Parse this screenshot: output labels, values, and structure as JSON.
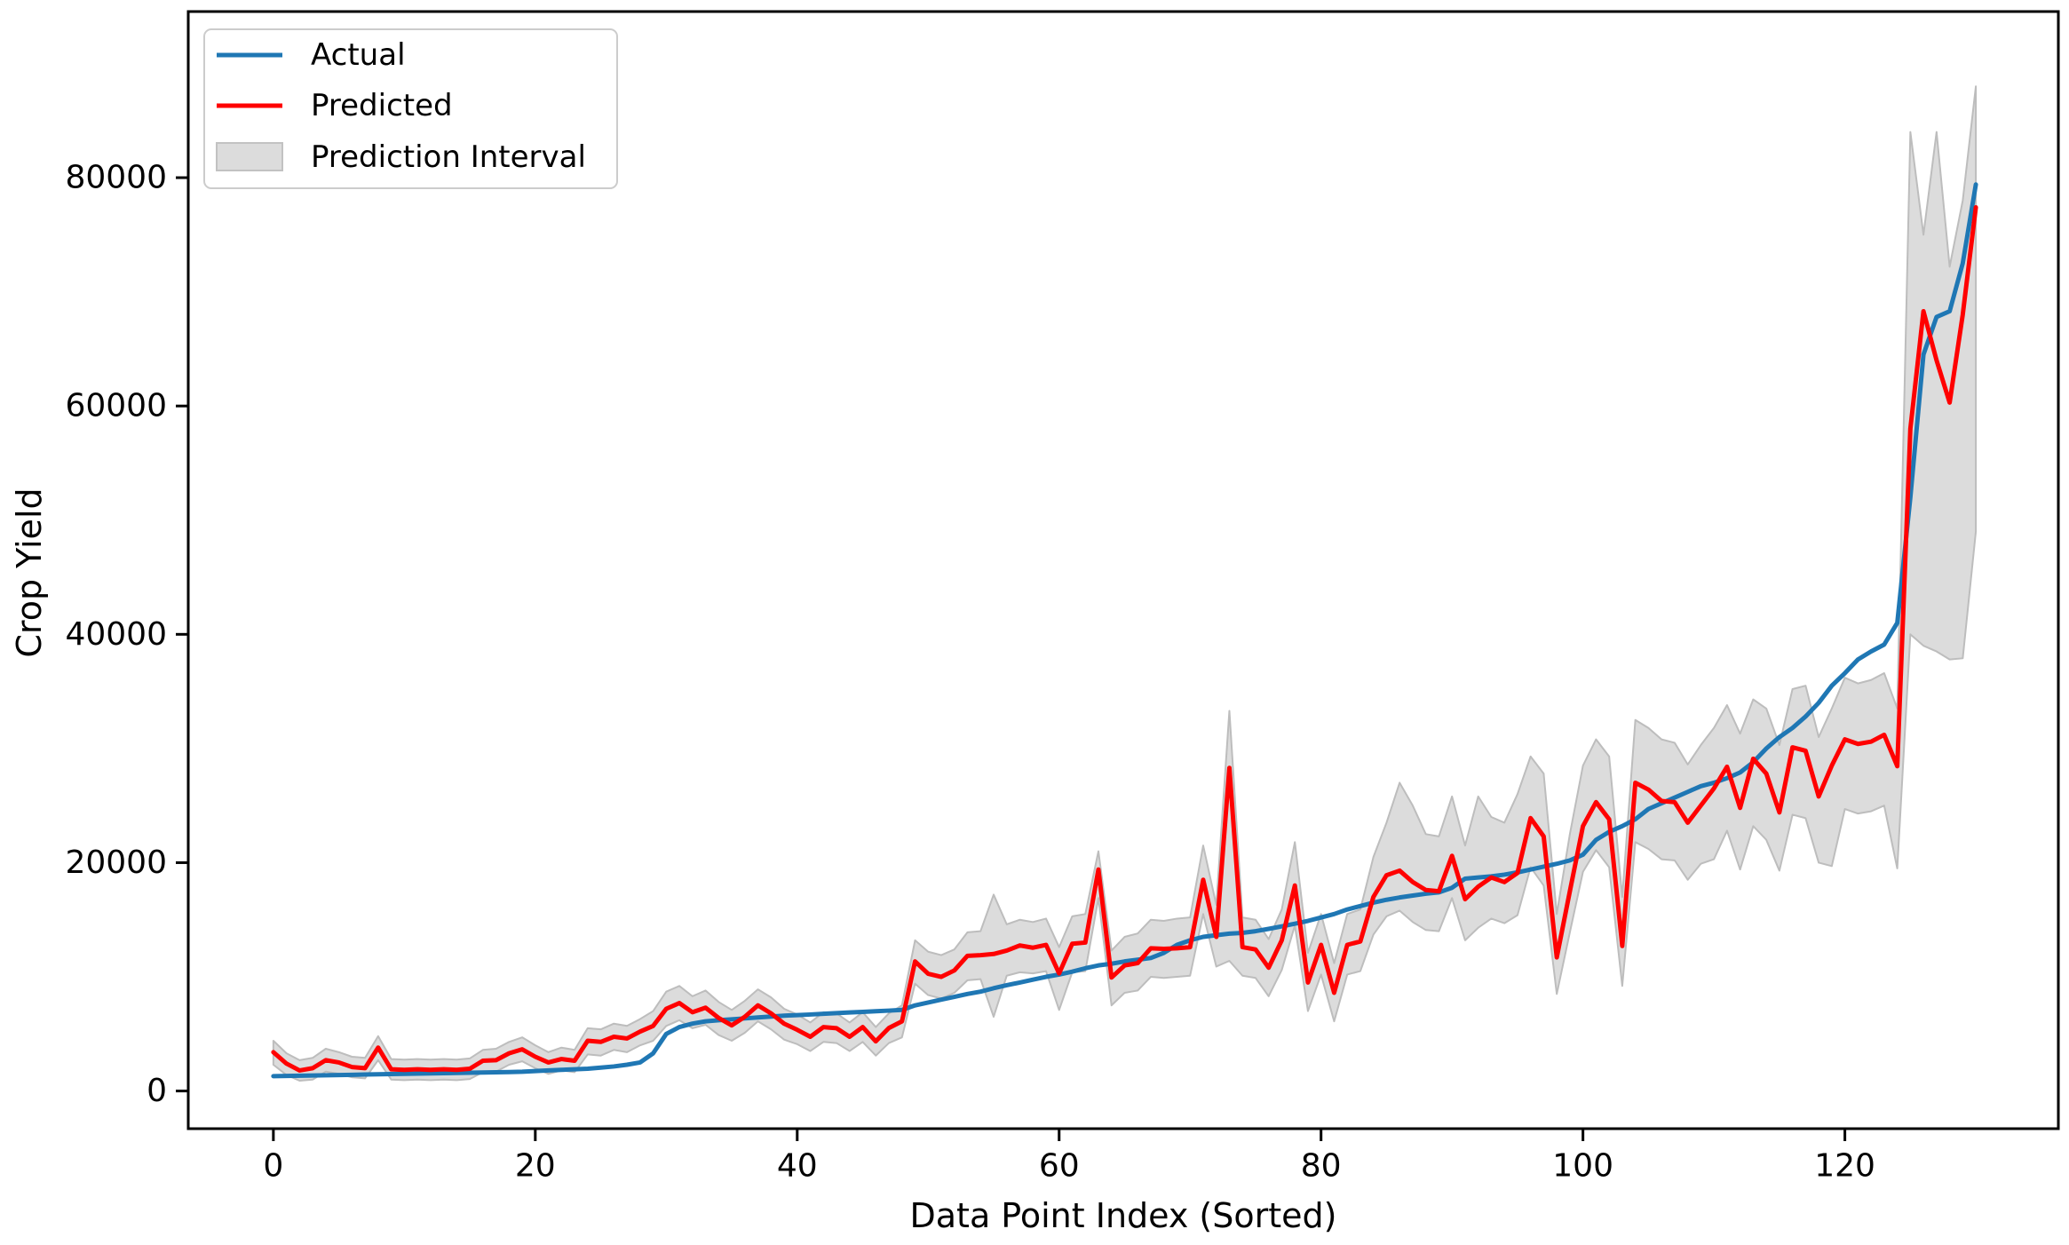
{
  "figure": {
    "background": "#ffffff",
    "frame_color": "#000000"
  },
  "axes": {
    "xlabel": "Data Point Index (Sorted)",
    "ylabel": "Crop Yield",
    "xticks": [
      0,
      20,
      40,
      60,
      80,
      100,
      120
    ],
    "yticks": [
      0,
      20000,
      40000,
      60000,
      80000
    ]
  },
  "legend": {
    "position": "upper left",
    "entries": [
      {
        "label": "Actual",
        "type": "line",
        "color": "#1f77b4"
      },
      {
        "label": "Predicted",
        "type": "line",
        "color": "#ff0000"
      },
      {
        "label": "Prediction Interval",
        "type": "patch",
        "color": "#dcdcdc",
        "edge": "#c2c2c2"
      }
    ]
  },
  "chart_data": {
    "type": "line",
    "title": "",
    "xlabel": "Data Point Index (Sorted)",
    "ylabel": "Crop Yield",
    "grid": false,
    "legend_position": "upper left",
    "n_points": 131,
    "xlim": [
      -6.5,
      136.3
    ],
    "ylim": [
      -3300,
      94550
    ],
    "series": [
      {
        "name": "Actual",
        "color": "#1f77b4",
        "values": [
          1300,
          1320,
          1340,
          1360,
          1380,
          1400,
          1420,
          1440,
          1460,
          1480,
          1500,
          1520,
          1540,
          1560,
          1580,
          1600,
          1620,
          1640,
          1660,
          1690,
          1750,
          1800,
          1850,
          1900,
          1950,
          2050,
          2150,
          2300,
          2500,
          3300,
          5000,
          5600,
          5900,
          6100,
          6200,
          6280,
          6360,
          6440,
          6520,
          6600,
          6650,
          6700,
          6760,
          6820,
          6880,
          6930,
          6990,
          7040,
          7100,
          7500,
          7750,
          8000,
          8250,
          8500,
          8700,
          9000,
          9270,
          9500,
          9750,
          10000,
          10200,
          10450,
          10750,
          11000,
          11150,
          11350,
          11500,
          11650,
          12100,
          12800,
          13200,
          13500,
          13650,
          13780,
          13850,
          14000,
          14200,
          14420,
          14650,
          14900,
          15200,
          15500,
          15900,
          16200,
          16500,
          16750,
          16950,
          17120,
          17280,
          17400,
          17800,
          18600,
          18700,
          18800,
          18950,
          19150,
          19400,
          19650,
          19900,
          20200,
          20700,
          22000,
          22700,
          23200,
          23800,
          24700,
          25200,
          25700,
          26200,
          26700,
          27000,
          27400,
          27900,
          28800,
          30000,
          31000,
          31800,
          32800,
          34000,
          35500,
          36600,
          37800,
          38500,
          39100,
          41000,
          52000,
          64500,
          67800,
          68300,
          72500,
          79400
        ]
      },
      {
        "name": "Predicted",
        "color": "#ff0000",
        "values": [
          3400,
          2400,
          1800,
          2000,
          2700,
          2500,
          2100,
          2000,
          3800,
          1900,
          1850,
          1900,
          1850,
          1900,
          1850,
          1950,
          2650,
          2700,
          3300,
          3650,
          3000,
          2500,
          2800,
          2650,
          4400,
          4300,
          4750,
          4600,
          5200,
          5700,
          7200,
          7700,
          6900,
          7300,
          6400,
          5750,
          6500,
          7500,
          6800,
          5900,
          5360,
          4750,
          5600,
          5500,
          4750,
          5600,
          4350,
          5520,
          6100,
          11350,
          10270,
          10000,
          10560,
          11840,
          11900,
          12000,
          12300,
          12750,
          12550,
          12800,
          10300,
          12900,
          13000,
          19400,
          9940,
          11000,
          11200,
          12500,
          12450,
          12500,
          12600,
          18500,
          13500,
          28300,
          12600,
          12400,
          10800,
          13200,
          18000,
          9500,
          12800,
          8600,
          12800,
          13100,
          17000,
          18900,
          19300,
          18300,
          17600,
          17500,
          20600,
          16800,
          17900,
          18700,
          18300,
          19100,
          23900,
          22300,
          11700,
          17500,
          23200,
          25300,
          23800,
          12700,
          27000,
          26400,
          25400,
          25300,
          23500,
          25000,
          26500,
          28400,
          24800,
          29100,
          27800,
          24400,
          30100,
          29800,
          25800,
          28500,
          30800,
          30400,
          30600,
          31200,
          28450,
          58000,
          68300,
          64000,
          60300,
          68000,
          77400
        ]
      }
    ],
    "band": {
      "name": "Prediction Interval",
      "fill": "#dcdcdc",
      "edge": "#bdbdbd",
      "lower": [
        2300,
        1400,
        900,
        1000,
        1700,
        1500,
        1200,
        1100,
        2700,
        1000,
        950,
        1000,
        950,
        1000,
        950,
        1050,
        1650,
        1700,
        2300,
        2600,
        2000,
        1500,
        1800,
        1650,
        3200,
        3100,
        3600,
        3400,
        4000,
        4400,
        5700,
        6200,
        5500,
        5800,
        4900,
        4400,
        5100,
        6100,
        5400,
        4500,
        4100,
        3500,
        4300,
        4200,
        3500,
        4300,
        3100,
        4200,
        4700,
        9400,
        8400,
        8100,
        8600,
        9700,
        9800,
        6500,
        10100,
        10400,
        10300,
        10500,
        7100,
        10400,
        10500,
        16900,
        7500,
        8600,
        8800,
        10000,
        9900,
        10000,
        10100,
        15500,
        10900,
        11400,
        10100,
        9900,
        8300,
        10600,
        14500,
        7000,
        10200,
        6100,
        10200,
        10500,
        13700,
        15300,
        15800,
        14800,
        14100,
        14000,
        16900,
        13200,
        14300,
        15100,
        14700,
        15400,
        19600,
        18000,
        8500,
        13900,
        19200,
        21100,
        19600,
        9200,
        21800,
        21200,
        20300,
        20200,
        18500,
        19900,
        20300,
        22800,
        19400,
        23200,
        22000,
        19300,
        24200,
        23900,
        20000,
        19700,
        24700,
        24300,
        24500,
        25000,
        19500,
        40000,
        39000,
        38500,
        37800,
        37900,
        49000
      ],
      "upper": [
        4400,
        3300,
        2700,
        2900,
        3700,
        3400,
        3000,
        2900,
        4800,
        2800,
        2750,
        2800,
        2750,
        2800,
        2750,
        2850,
        3600,
        3700,
        4300,
        4700,
        4000,
        3400,
        3800,
        3600,
        5500,
        5400,
        5900,
        5700,
        6300,
        7000,
        8700,
        9200,
        8300,
        8800,
        7800,
        7100,
        7900,
        8900,
        8200,
        7200,
        6700,
        6000,
        6900,
        6800,
        6000,
        6900,
        5600,
        6800,
        7500,
        13200,
        12200,
        11900,
        12400,
        13900,
        14000,
        17200,
        14600,
        15000,
        14800,
        15100,
        12600,
        15300,
        15500,
        21000,
        12300,
        13500,
        13800,
        15000,
        14900,
        15100,
        15200,
        21500,
        16300,
        33300,
        15200,
        15000,
        13300,
        15900,
        21800,
        12100,
        15500,
        11200,
        15500,
        15900,
        20500,
        23500,
        27000,
        25000,
        22500,
        22300,
        25800,
        21500,
        25800,
        24000,
        23500,
        26000,
        29300,
        27800,
        15500,
        22500,
        28500,
        30800,
        29300,
        17000,
        32500,
        31800,
        30800,
        30500,
        28600,
        30300,
        31800,
        33800,
        31300,
        34300,
        33500,
        30300,
        35200,
        35500,
        31000,
        33500,
        36200,
        35700,
        36000,
        36600,
        33500,
        84000,
        75000,
        84000,
        72200,
        78000,
        88000
      ]
    }
  }
}
